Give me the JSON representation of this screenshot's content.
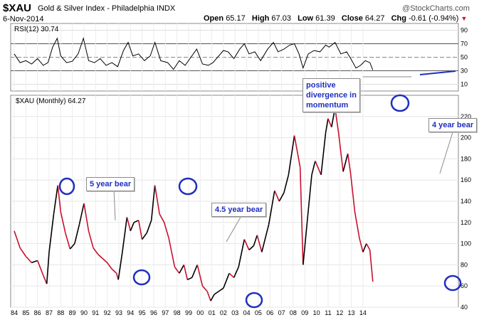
{
  "header": {
    "symbol": "$XAU",
    "name": "Gold & Silver Index - Philadelphia INDX",
    "date": "6-Nov-2014",
    "watermark": "@StockCharts.com",
    "open_label": "Open",
    "open": "65.17",
    "high_label": "High",
    "high": "67.03",
    "low_label": "Low",
    "low": "61.39",
    "close_label": "Close",
    "close": "64.27",
    "chg_label": "Chg",
    "chg": "-0.61 (-0.94%)"
  },
  "rsi_panel": {
    "legend": "RSI(12) 30.74",
    "levels": [
      "90",
      "70",
      "50",
      "30",
      "10"
    ],
    "level_values": [
      90,
      70,
      50,
      30,
      10
    ]
  },
  "price_panel": {
    "legend": "$XAU (Monthly) 64.27",
    "y_ticks": [
      "220",
      "200",
      "180",
      "160",
      "140",
      "120",
      "100",
      "80",
      "60",
      "40"
    ],
    "y_values": [
      220,
      200,
      180,
      160,
      140,
      120,
      100,
      80,
      60,
      40
    ]
  },
  "annotations": {
    "five_year_bear": "5 year bear",
    "four_five_year_bear": "4.5 year bear",
    "four_year_bear": "4 year bear",
    "divergence_line1": "positive",
    "divergence_line2": "divergence in",
    "divergence_line3": "momentum"
  },
  "colors": {
    "up": "#000000",
    "down": "#c8102e",
    "circle": "#1f2fbf",
    "annotation_text": "#1f2fbf",
    "grid": "#cccccc"
  },
  "chart_data": {
    "type": "line",
    "x_ticks": [
      "84",
      "85",
      "86",
      "87",
      "88",
      "89",
      "90",
      "91",
      "92",
      "93",
      "94",
      "95",
      "96",
      "97",
      "98",
      "99",
      "00",
      "01",
      "02",
      "03",
      "04",
      "05",
      "06",
      "07",
      "08",
      "09",
      "10",
      "11",
      "12",
      "13",
      "14"
    ],
    "price": {
      "ylim": [
        40,
        240
      ],
      "points": [
        [
          1984.0,
          112
        ],
        [
          1984.5,
          96
        ],
        [
          1985.0,
          88
        ],
        [
          1985.5,
          82
        ],
        [
          1986.0,
          84
        ],
        [
          1986.5,
          70
        ],
        [
          1986.8,
          62
        ],
        [
          1987.0,
          92
        ],
        [
          1987.4,
          128
        ],
        [
          1987.75,
          155
        ],
        [
          1988.0,
          130
        ],
        [
          1988.4,
          110
        ],
        [
          1988.8,
          95
        ],
        [
          1989.2,
          100
        ],
        [
          1989.6,
          118
        ],
        [
          1990.0,
          138
        ],
        [
          1990.4,
          112
        ],
        [
          1990.8,
          96
        ],
        [
          1991.2,
          90
        ],
        [
          1991.6,
          86
        ],
        [
          1992.0,
          82
        ],
        [
          1992.4,
          76
        ],
        [
          1992.8,
          72
        ],
        [
          1992.95,
          66
        ],
        [
          1993.3,
          92
        ],
        [
          1993.7,
          125
        ],
        [
          1994.0,
          112
        ],
        [
          1994.3,
          120
        ],
        [
          1994.7,
          122
        ],
        [
          1995.0,
          104
        ],
        [
          1995.4,
          110
        ],
        [
          1995.8,
          122
        ],
        [
          1996.1,
          155
        ],
        [
          1996.5,
          128
        ],
        [
          1996.9,
          120
        ],
        [
          1997.3,
          105
        ],
        [
          1997.8,
          78
        ],
        [
          1998.2,
          72
        ],
        [
          1998.6,
          80
        ],
        [
          1998.9,
          66
        ],
        [
          1999.3,
          68
        ],
        [
          1999.75,
          80
        ],
        [
          2000.2,
          60
        ],
        [
          2000.6,
          55
        ],
        [
          2000.9,
          46
        ],
        [
          2001.2,
          52
        ],
        [
          2001.6,
          55
        ],
        [
          2002.0,
          58
        ],
        [
          2002.5,
          72
        ],
        [
          2002.9,
          68
        ],
        [
          2003.3,
          78
        ],
        [
          2003.8,
          104
        ],
        [
          2004.2,
          94
        ],
        [
          2004.6,
          98
        ],
        [
          2004.9,
          108
        ],
        [
          2005.3,
          92
        ],
        [
          2005.9,
          118
        ],
        [
          2006.4,
          150
        ],
        [
          2006.8,
          140
        ],
        [
          2007.2,
          148
        ],
        [
          2007.6,
          165
        ],
        [
          2008.1,
          202
        ],
        [
          2008.6,
          172
        ],
        [
          2008.85,
          80
        ],
        [
          2009.2,
          120
        ],
        [
          2009.6,
          165
        ],
        [
          2009.9,
          178
        ],
        [
          2010.4,
          165
        ],
        [
          2010.8,
          205
        ],
        [
          2011.0,
          218
        ],
        [
          2011.3,
          210
        ],
        [
          2011.6,
          228
        ],
        [
          2011.9,
          205
        ],
        [
          2012.3,
          168
        ],
        [
          2012.7,
          185
        ],
        [
          2012.95,
          165
        ],
        [
          2013.3,
          130
        ],
        [
          2013.7,
          105
        ],
        [
          2014.0,
          92
        ],
        [
          2014.3,
          100
        ],
        [
          2014.6,
          94
        ],
        [
          2014.85,
          64
        ]
      ]
    },
    "rsi": {
      "ylim": [
        0,
        100
      ],
      "points": [
        [
          1984.0,
          55
        ],
        [
          1984.5,
          42
        ],
        [
          1985.0,
          45
        ],
        [
          1985.5,
          40
        ],
        [
          1986.0,
          48
        ],
        [
          1986.5,
          38
        ],
        [
          1986.9,
          42
        ],
        [
          1987.3,
          65
        ],
        [
          1987.7,
          78
        ],
        [
          1988.0,
          52
        ],
        [
          1988.5,
          42
        ],
        [
          1989.0,
          44
        ],
        [
          1989.5,
          55
        ],
        [
          1989.95,
          78
        ],
        [
          1990.4,
          45
        ],
        [
          1990.9,
          42
        ],
        [
          1991.4,
          48
        ],
        [
          1991.9,
          38
        ],
        [
          1992.4,
          42
        ],
        [
          1992.9,
          36
        ],
        [
          1993.4,
          60
        ],
        [
          1993.8,
          72
        ],
        [
          1994.2,
          52
        ],
        [
          1994.7,
          55
        ],
        [
          1995.2,
          45
        ],
        [
          1995.7,
          52
        ],
        [
          1996.1,
          72
        ],
        [
          1996.6,
          45
        ],
        [
          1997.2,
          42
        ],
        [
          1997.7,
          32
        ],
        [
          1998.2,
          45
        ],
        [
          1998.7,
          38
        ],
        [
          1999.2,
          50
        ],
        [
          1999.7,
          62
        ],
        [
          2000.2,
          40
        ],
        [
          2000.7,
          38
        ],
        [
          2001.1,
          42
        ],
        [
          2001.6,
          52
        ],
        [
          2002.0,
          60
        ],
        [
          2002.4,
          58
        ],
        [
          2002.9,
          48
        ],
        [
          2003.4,
          62
        ],
        [
          2003.8,
          70
        ],
        [
          2004.2,
          55
        ],
        [
          2004.7,
          58
        ],
        [
          2005.2,
          45
        ],
        [
          2005.8,
          62
        ],
        [
          2006.3,
          72
        ],
        [
          2006.7,
          58
        ],
        [
          2007.2,
          62
        ],
        [
          2007.7,
          68
        ],
        [
          2008.1,
          70
        ],
        [
          2008.5,
          55
        ],
        [
          2008.85,
          34
        ],
        [
          2009.3,
          55
        ],
        [
          2009.8,
          60
        ],
        [
          2010.3,
          58
        ],
        [
          2010.8,
          68
        ],
        [
          2011.1,
          65
        ],
        [
          2011.6,
          72
        ],
        [
          2012.1,
          55
        ],
        [
          2012.6,
          58
        ],
        [
          2012.95,
          48
        ],
        [
          2013.4,
          34
        ],
        [
          2013.8,
          38
        ],
        [
          2014.2,
          45
        ],
        [
          2014.6,
          42
        ],
        [
          2014.85,
          31
        ]
      ]
    }
  }
}
